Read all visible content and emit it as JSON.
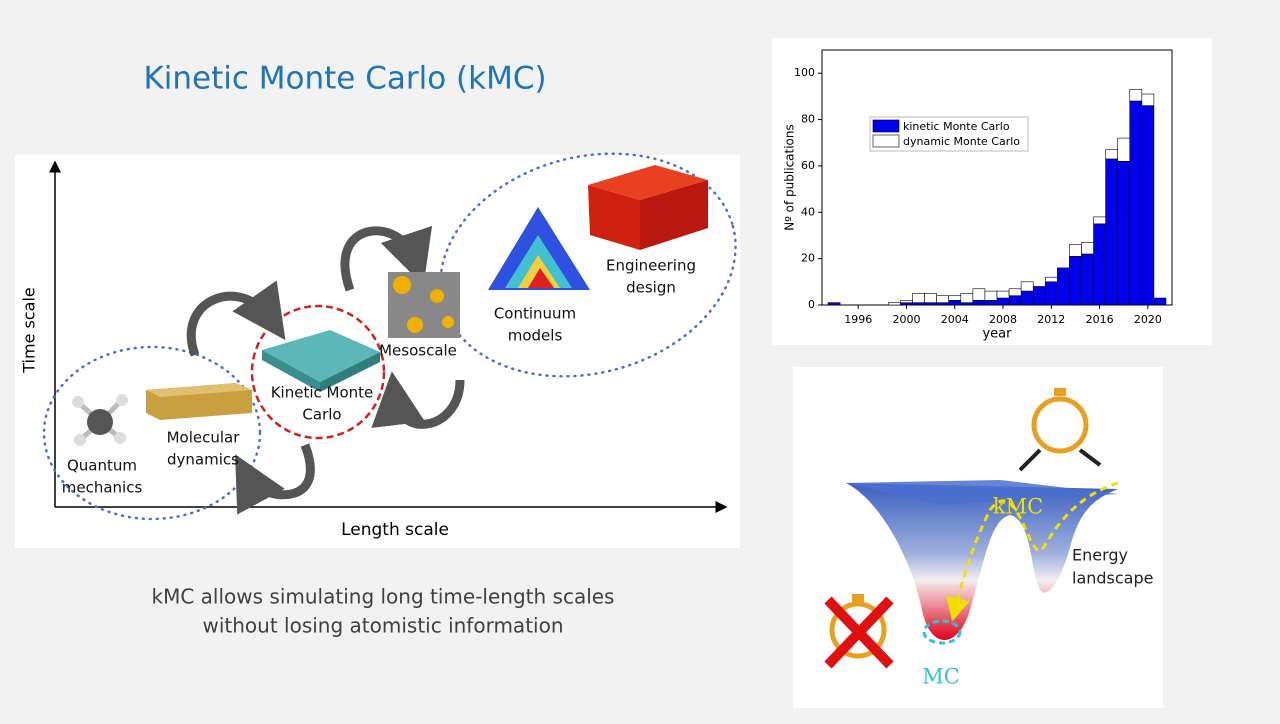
{
  "title": "Kinetic Monte Carlo (kMC)",
  "diagram": {
    "y_axis_label": "Time scale",
    "x_axis_label": "Length scale",
    "nodes": [
      {
        "lines": [
          "Quantum",
          "mechanics"
        ]
      },
      {
        "lines": [
          "Molecular",
          "dynamics"
        ]
      },
      {
        "lines": [
          "Kinetic Monte",
          "Carlo"
        ]
      },
      {
        "lines": [
          "Mesoscale"
        ]
      },
      {
        "lines": [
          "Continuum",
          "models"
        ]
      },
      {
        "lines": [
          "Engineering",
          "design"
        ]
      }
    ]
  },
  "caption": [
    "kMC allows simulating long time-length scales",
    "without losing atomistic information"
  ],
  "energy": {
    "kmc_label": "kMC",
    "landscape_label": [
      "Energy",
      "landscape"
    ],
    "mc_label": "MC"
  },
  "chart_data": {
    "type": "bar",
    "stacked": true,
    "x_label": "year",
    "y_label": "Nº of publications",
    "x": [
      1994,
      1995,
      1996,
      1997,
      1998,
      1999,
      2000,
      2001,
      2002,
      2003,
      2004,
      2005,
      2006,
      2007,
      2008,
      2009,
      2010,
      2011,
      2012,
      2013,
      2014,
      2015,
      2016,
      2017,
      2018,
      2019,
      2020,
      2021
    ],
    "series": [
      {
        "name": "kinetic Monte Carlo",
        "color": "#0000ee",
        "values": [
          1,
          0,
          0,
          0,
          0,
          0,
          1,
          1,
          1,
          1,
          2,
          1,
          2,
          2,
          3,
          4,
          6,
          8,
          10,
          16,
          21,
          22,
          35,
          63,
          62,
          88,
          86,
          3
        ]
      },
      {
        "name": "dynamic Monte Carlo",
        "color": "#ffffff",
        "values": [
          0,
          0,
          0,
          0,
          0,
          1,
          1,
          4,
          4,
          3,
          2,
          4,
          5,
          4,
          3,
          3,
          4,
          0,
          2,
          0,
          5,
          5,
          3,
          4,
          10,
          5,
          5,
          0
        ]
      }
    ],
    "xlim": [
      1993,
      2022
    ],
    "ylim": [
      0,
      110
    ],
    "xticks": [
      1996,
      2000,
      2004,
      2008,
      2012,
      2016,
      2020
    ],
    "yticks": [
      0,
      20,
      40,
      60,
      80,
      100
    ],
    "legend": "upper-left"
  }
}
